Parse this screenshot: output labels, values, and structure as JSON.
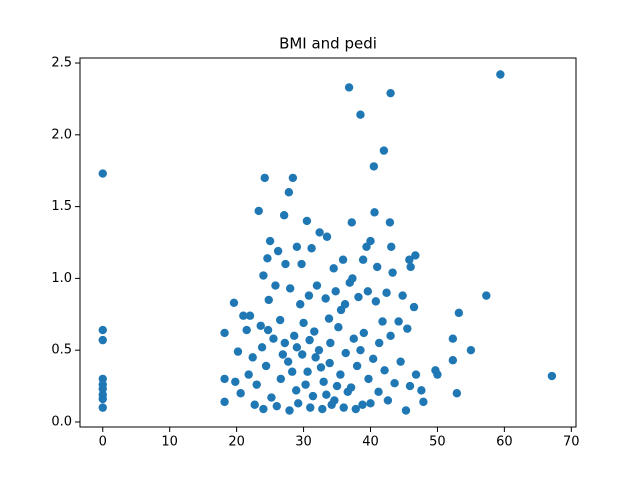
{
  "chart_data": {
    "type": "scatter",
    "title": "BMI and pedi",
    "color": "#1f77b4",
    "grid": false,
    "xlim": [
      -3.4,
      70.7
    ],
    "ylim": [
      -0.035,
      2.535
    ],
    "xticks": [
      0,
      10,
      20,
      30,
      40,
      50,
      60,
      70
    ],
    "yticks": [
      {
        "value": 0,
        "label": "0.0"
      },
      0.5,
      {
        "value": 1,
        "label": "1.0"
      },
      1.5,
      {
        "value": 2,
        "label": "2.0"
      },
      2.5
    ],
    "x": [
      59.4,
      36.8,
      43.0,
      38.5,
      42.0,
      40.5,
      0,
      24.2,
      28.4,
      27.8,
      23.3,
      40.6,
      30.5,
      37.2,
      42.9,
      27.1,
      32.4,
      33.5,
      25.0,
      29.0,
      31.2,
      39.4,
      43.1,
      40.0,
      46.7,
      26.2,
      24.6,
      35.9,
      38.9,
      45.8,
      27.3,
      29.7,
      34.5,
      41.0,
      46.0,
      43.3,
      24.0,
      37.3,
      57.3,
      53.2,
      0,
      0,
      19.6,
      52.3,
      55.0,
      52.3,
      52.9,
      67.1,
      0,
      0,
      0,
      0,
      0,
      0,
      18.2,
      18.2,
      18.2,
      49.7,
      50.0,
      47.9,
      45.3,
      21.0,
      22.0,
      21.5,
      23.6,
      24.8,
      25.8,
      26.5,
      28.0,
      29.5,
      30.8,
      32.0,
      33.3,
      34.8,
      35.6,
      36.9,
      38.2,
      39.6,
      40.8,
      42.4,
      44.8,
      46.5,
      44.2,
      45.5,
      43.0,
      41.3,
      39.0,
      37.5,
      35.2,
      33.8,
      31.6,
      30.0,
      28.6,
      27.2,
      25.5,
      23.8,
      22.4,
      20.2,
      19.8,
      20.6,
      21.8,
      23.0,
      24.4,
      25.2,
      26.6,
      27.7,
      28.9,
      29.8,
      30.6,
      31.4,
      32.3,
      33.0,
      33.9,
      34.6,
      35.5,
      36.3,
      37.1,
      38.0,
      38.8,
      39.7,
      40.4,
      41.2,
      42.1,
      43.6,
      44.5,
      45.9,
      46.8,
      47.6,
      22.7,
      24.0,
      26.0,
      27.9,
      29.2,
      31.0,
      32.8,
      34.2,
      36.0,
      37.8,
      40.0,
      42.6,
      28.3,
      30.3,
      32.6,
      34.0,
      36.6,
      31.8,
      29.0,
      26.9,
      35.0,
      33.4,
      30.9,
      38.5,
      41.8,
      24.7,
      36.2
    ],
    "values": [
      2.42,
      2.33,
      2.29,
      2.14,
      1.89,
      1.78,
      1.73,
      1.7,
      1.7,
      1.6,
      1.47,
      1.46,
      1.4,
      1.39,
      1.39,
      1.44,
      1.32,
      1.29,
      1.26,
      1.22,
      1.21,
      1.22,
      1.22,
      1.26,
      1.16,
      1.19,
      1.14,
      1.13,
      1.13,
      1.13,
      1.1,
      1.1,
      1.07,
      1.08,
      1.08,
      1.04,
      1.02,
      1.0,
      0.88,
      0.76,
      0.64,
      0.57,
      0.83,
      0.58,
      0.5,
      0.43,
      0.2,
      0.32,
      0.3,
      0.26,
      0.23,
      0.19,
      0.16,
      0.1,
      0.62,
      0.3,
      0.14,
      0.36,
      0.33,
      0.14,
      0.08,
      0.74,
      0.74,
      0.64,
      0.67,
      0.85,
      0.95,
      0.71,
      0.93,
      0.82,
      0.88,
      0.95,
      0.86,
      0.91,
      0.78,
      0.97,
      0.87,
      0.91,
      0.84,
      0.9,
      0.88,
      0.8,
      0.7,
      0.65,
      0.6,
      0.55,
      0.62,
      0.58,
      0.66,
      0.72,
      0.63,
      0.69,
      0.6,
      0.55,
      0.58,
      0.52,
      0.45,
      0.49,
      0.28,
      0.2,
      0.33,
      0.26,
      0.39,
      0.17,
      0.3,
      0.42,
      0.22,
      0.47,
      0.35,
      0.18,
      0.5,
      0.28,
      0.41,
      0.15,
      0.33,
      0.48,
      0.24,
      0.39,
      0.12,
      0.3,
      0.44,
      0.21,
      0.36,
      0.27,
      0.42,
      0.25,
      0.33,
      0.22,
      0.12,
      0.09,
      0.11,
      0.08,
      0.13,
      0.1,
      0.09,
      0.12,
      0.1,
      0.09,
      0.13,
      0.15,
      0.35,
      0.26,
      0.38,
      0.55,
      0.21,
      0.45,
      0.52,
      0.47,
      0.25,
      0.19,
      0.57,
      0.5,
      0.7,
      0.64,
      0.82
    ]
  }
}
